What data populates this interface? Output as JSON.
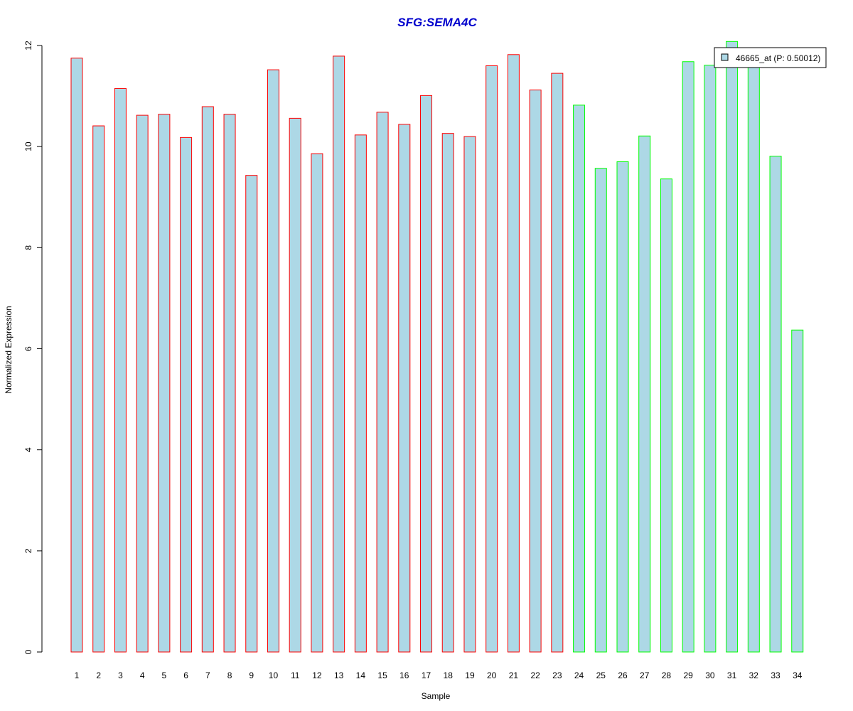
{
  "chart_data": {
    "type": "bar",
    "title": "SFG:SEMA4C",
    "xlabel": "Sample",
    "ylabel": "Normalized Expression",
    "ylim": [
      0,
      12
    ],
    "y_ticks": [
      0,
      2,
      4,
      6,
      8,
      10,
      12
    ],
    "categories": [
      "1",
      "2",
      "3",
      "4",
      "5",
      "6",
      "7",
      "8",
      "9",
      "10",
      "11",
      "12",
      "13",
      "14",
      "15",
      "16",
      "17",
      "18",
      "19",
      "20",
      "21",
      "22",
      "23",
      "24",
      "25",
      "26",
      "27",
      "28",
      "29",
      "30",
      "31",
      "32",
      "33",
      "34"
    ],
    "series": [
      {
        "name": "46665_at (P: 0.50012)",
        "values": [
          11.75,
          10.41,
          11.15,
          10.62,
          10.64,
          10.18,
          10.79,
          10.64,
          9.43,
          11.52,
          10.56,
          9.86,
          11.79,
          10.23,
          10.68,
          10.44,
          11.01,
          10.26,
          10.2,
          11.6,
          11.82,
          11.12,
          11.45,
          10.82,
          9.57,
          9.7,
          10.21,
          9.36,
          11.68,
          11.61,
          12.08,
          11.62,
          9.81,
          6.37
        ]
      }
    ],
    "bar_fill": "#ADD8E6",
    "group_colors": {
      "red_samples": "#FF0000",
      "green_samples": "#00FF00"
    },
    "red_count": 23,
    "title_color": "#0000CD",
    "legend": {
      "label": "46665_at (P: 0.50012)",
      "placement": "top-right"
    },
    "grid": false
  }
}
